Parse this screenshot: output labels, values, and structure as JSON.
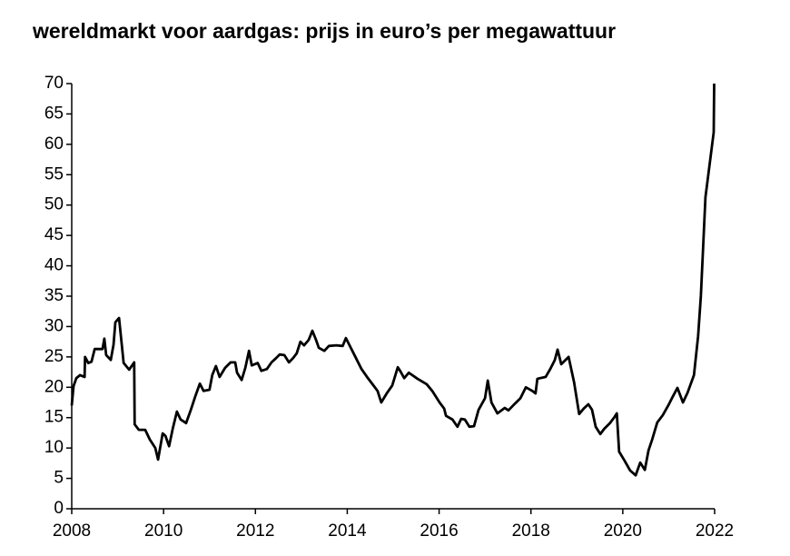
{
  "chart_data": {
    "type": "line",
    "title": "wereldmarkt voor aardgas: prijs in euro’s per megawattuur",
    "x": [
      2008.0,
      2008.04,
      2008.1,
      2008.18,
      2008.28,
      2008.29,
      2008.36,
      2008.43,
      2008.5,
      2008.67,
      2008.71,
      2008.75,
      2008.85,
      2008.91,
      2008.95,
      2009.03,
      2009.09,
      2009.13,
      2009.25,
      2009.36,
      2009.37,
      2009.46,
      2009.6,
      2009.7,
      2009.82,
      2009.88,
      2009.98,
      2010.04,
      2010.12,
      2010.2,
      2010.29,
      2010.37,
      2010.49,
      2010.59,
      2010.69,
      2010.79,
      2010.87,
      2011.0,
      2011.06,
      2011.14,
      2011.22,
      2011.34,
      2011.46,
      2011.56,
      2011.6,
      2011.7,
      2011.78,
      2011.86,
      2011.92,
      2012.05,
      2012.13,
      2012.25,
      2012.35,
      2012.45,
      2012.53,
      2012.63,
      2012.73,
      2012.82,
      2012.9,
      2012.98,
      2013.06,
      2013.16,
      2013.24,
      2013.32,
      2013.38,
      2013.5,
      2013.6,
      2013.76,
      2013.9,
      2013.97,
      2014.07,
      2014.19,
      2014.31,
      2014.45,
      2014.57,
      2014.66,
      2014.74,
      2014.86,
      2014.98,
      2015.04,
      2015.1,
      2015.16,
      2015.24,
      2015.34,
      2015.53,
      2015.73,
      2015.85,
      2016.01,
      2016.11,
      2016.15,
      2016.29,
      2016.4,
      2016.48,
      2016.56,
      2016.66,
      2016.76,
      2016.86,
      2017.0,
      2017.06,
      2017.14,
      2017.27,
      2017.43,
      2017.51,
      2017.65,
      2017.77,
      2017.89,
      2018.03,
      2018.1,
      2018.14,
      2018.32,
      2018.42,
      2018.52,
      2018.58,
      2018.66,
      2018.82,
      2018.94,
      2019.05,
      2019.15,
      2019.25,
      2019.33,
      2019.41,
      2019.51,
      2019.6,
      2019.72,
      2019.81,
      2019.87,
      2019.92,
      2020.04,
      2020.16,
      2020.28,
      2020.38,
      2020.48,
      2020.56,
      2020.64,
      2020.75,
      2020.87,
      2020.99,
      2021.07,
      2021.19,
      2021.31,
      2021.41,
      2021.55,
      2021.64,
      2021.7,
      2021.8,
      2021.98,
      2021.99
    ],
    "series": [
      {
        "color": "#000000",
        "values": [
          17,
          20.2,
          21.5,
          22,
          21.7,
          25,
          24,
          24.2,
          26.3,
          26.3,
          28,
          25.3,
          24.5,
          27,
          30.7,
          31.4,
          27,
          24,
          22.9,
          24.1,
          13.9,
          13,
          13,
          11.4,
          10,
          8.1,
          12.4,
          12,
          10.3,
          13.2,
          16,
          14.7,
          14.1,
          16.2,
          18.5,
          20.6,
          19.4,
          19.6,
          22,
          23.5,
          21.7,
          23.2,
          24.1,
          24.1,
          22.4,
          21.2,
          23.2,
          26,
          23.6,
          24,
          22.7,
          23,
          24.1,
          24.8,
          25.4,
          25.3,
          24.1,
          24.8,
          25.6,
          27.5,
          26.9,
          27.8,
          29.3,
          27.8,
          26.5,
          26,
          26.8,
          26.9,
          26.8,
          28.1,
          26.6,
          24.8,
          23,
          21.5,
          20.3,
          19.4,
          17.5,
          19,
          20.3,
          21.8,
          23.3,
          22.6,
          21.5,
          22.4,
          21.4,
          20.5,
          19.4,
          17.5,
          16.5,
          15.3,
          14.7,
          13.5,
          14.8,
          14.7,
          13.5,
          13.6,
          16.3,
          18.2,
          21.1,
          17.5,
          15.7,
          16.6,
          16.2,
          17.3,
          18.2,
          20,
          19.4,
          19,
          21.4,
          21.7,
          23,
          24.5,
          26.2,
          23.8,
          25,
          20.8,
          15.6,
          16.5,
          17.2,
          16.3,
          13.5,
          12.3,
          13.2,
          14.1,
          15,
          15.7,
          9.4,
          7.9,
          6.3,
          5.5,
          7.6,
          6.4,
          9.6,
          11.4,
          14.2,
          15.4,
          17,
          18.2,
          19.9,
          17.5,
          19.1,
          22,
          28.4,
          35,
          51.3,
          62,
          70
        ]
      }
    ],
    "xlim": [
      2008,
      2022
    ],
    "xticks": [
      2008,
      2010,
      2012,
      2014,
      2016,
      2018,
      2020,
      2022
    ],
    "ylim": [
      0,
      70
    ],
    "yticks": [
      0,
      5,
      10,
      15,
      20,
      25,
      30,
      35,
      40,
      45,
      50,
      55,
      60,
      65,
      70
    ],
    "grid": false
  }
}
